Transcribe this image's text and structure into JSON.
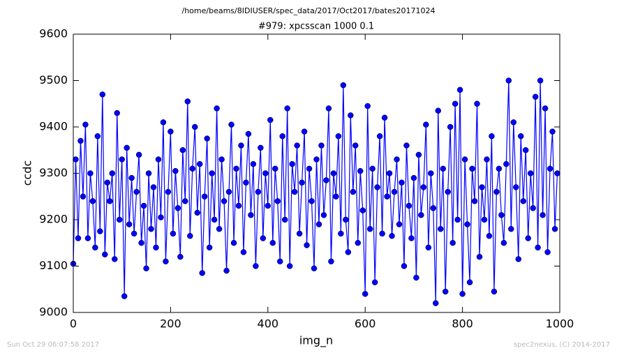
{
  "header": "/home/beams/8IDIUSER/spec_data/2017/Oct2017/bates20171024",
  "footer": {
    "left": "Sun Oct 29 06:07:58 2017",
    "right": "spec2nexus, (C) 2014-2017"
  },
  "chart_data": {
    "type": "line",
    "title": "#979: xpcsscan 1000 0.1",
    "xlabel": "img_n",
    "ylabel": "ccdc",
    "xlim": [
      0,
      1000
    ],
    "xticks": [
      0,
      200,
      400,
      600,
      800,
      1000
    ],
    "ylim": [
      9000,
      9600
    ],
    "yticks": [
      9000,
      9100,
      9200,
      9300,
      9400,
      9500,
      9600
    ],
    "grid": false,
    "marker": "circle",
    "x": [
      0,
      5,
      10,
      15,
      20,
      25,
      30,
      35,
      40,
      45,
      50,
      55,
      60,
      65,
      70,
      75,
      80,
      85,
      90,
      95,
      100,
      105,
      110,
      115,
      120,
      125,
      130,
      135,
      140,
      145,
      150,
      155,
      160,
      165,
      170,
      175,
      180,
      185,
      190,
      195,
      200,
      205,
      210,
      215,
      220,
      225,
      230,
      235,
      240,
      245,
      250,
      255,
      260,
      265,
      270,
      275,
      280,
      285,
      290,
      295,
      300,
      305,
      310,
      315,
      320,
      325,
      330,
      335,
      340,
      345,
      350,
      355,
      360,
      365,
      370,
      375,
      380,
      385,
      390,
      395,
      400,
      405,
      410,
      415,
      420,
      425,
      430,
      435,
      440,
      445,
      450,
      455,
      460,
      465,
      470,
      475,
      480,
      485,
      490,
      495,
      500,
      505,
      510,
      515,
      520,
      525,
      530,
      535,
      540,
      545,
      550,
      555,
      560,
      565,
      570,
      575,
      580,
      585,
      590,
      595,
      600,
      605,
      610,
      615,
      620,
      625,
      630,
      635,
      640,
      645,
      650,
      655,
      660,
      665,
      670,
      675,
      680,
      685,
      690,
      695,
      700,
      705,
      710,
      715,
      720,
      725,
      730,
      735,
      740,
      745,
      750,
      755,
      760,
      765,
      770,
      775,
      780,
      785,
      790,
      795,
      800,
      805,
      810,
      815,
      820,
      825,
      830,
      835,
      840,
      845,
      850,
      855,
      860,
      865,
      870,
      875,
      880,
      885,
      890,
      895,
      900,
      905,
      910,
      915,
      920,
      925,
      930,
      935,
      940,
      945,
      950,
      955,
      960,
      965,
      970,
      975,
      980,
      985,
      990,
      995
    ],
    "series": [
      {
        "name": "ccdc",
        "color": "#0000ff",
        "values": [
          9105,
          9330,
          9160,
          9370,
          9250,
          9405,
          9160,
          9300,
          9240,
          9140,
          9380,
          9175,
          9470,
          9125,
          9280,
          9240,
          9300,
          9115,
          9430,
          9200,
          9330,
          9035,
          9355,
          9190,
          9290,
          9170,
          9260,
          9340,
          9150,
          9230,
          9095,
          9300,
          9180,
          9270,
          9140,
          9330,
          9205,
          9410,
          9110,
          9260,
          9390,
          9170,
          9305,
          9225,
          9120,
          9350,
          9240,
          9455,
          9165,
          9310,
          9400,
          9215,
          9320,
          9085,
          9250,
          9375,
          9140,
          9300,
          9200,
          9440,
          9180,
          9330,
          9240,
          9090,
          9260,
          9405,
          9150,
          9310,
          9230,
          9360,
          9130,
          9280,
          9385,
          9210,
          9320,
          9100,
          9260,
          9355,
          9160,
          9300,
          9230,
          9415,
          9150,
          9310,
          9240,
          9110,
          9380,
          9200,
          9440,
          9100,
          9320,
          9260,
          9360,
          9170,
          9280,
          9390,
          9145,
          9310,
          9240,
          9095,
          9330,
          9190,
          9360,
          9210,
          9285,
          9440,
          9110,
          9300,
          9250,
          9380,
          9170,
          9490,
          9200,
          9130,
          9425,
          9260,
          9360,
          9150,
          9305,
          9220,
          9040,
          9445,
          9180,
          9310,
          9065,
          9270,
          9380,
          9170,
          9420,
          9250,
          9300,
          9165,
          9260,
          9330,
          9190,
          9280,
          9100,
          9360,
          9230,
          9160,
          9290,
          9075,
          9340,
          9210,
          9270,
          9405,
          9140,
          9300,
          9225,
          9020,
          9435,
          9180,
          9310,
          9045,
          9260,
          9400,
          9150,
          9450,
          9200,
          9480,
          9040,
          9330,
          9190,
          9065,
          9310,
          9240,
          9450,
          9120,
          9270,
          9200,
          9330,
          9165,
          9380,
          9045,
          9260,
          9310,
          9210,
          9150,
          9320,
          9500,
          9180,
          9410,
          9270,
          9115,
          9380,
          9240,
          9350,
          9160,
          9300,
          9225,
          9465,
          9140,
          9500,
          9210,
          9440,
          9130,
          9310,
          9390,
          9180,
          9300
        ]
      }
    ]
  }
}
